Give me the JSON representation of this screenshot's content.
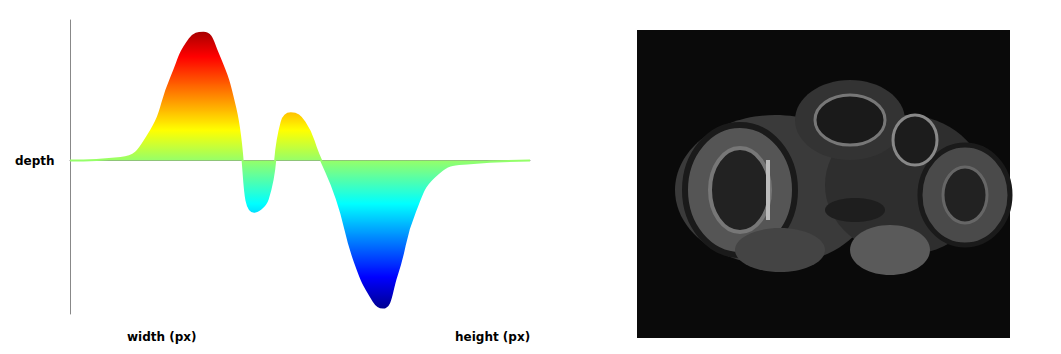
{
  "chart_data": {
    "type": "line",
    "xlabel": "width (px)",
    "ylabel": "height (px)",
    "zlabel": "depth",
    "x": [
      0,
      11,
      17,
      22,
      26,
      29,
      32,
      36,
      40,
      43,
      46,
      48,
      51,
      54,
      58,
      62,
      66,
      68,
      71,
      75,
      80,
      87,
      100
    ],
    "values": [
      0,
      0.02,
      0.2,
      0.65,
      0.95,
      1.0,
      0.85,
      0.4,
      -0.4,
      -0.3,
      0.3,
      0.37,
      0.3,
      0.05,
      -0.3,
      -0.8,
      -1.1,
      -1.15,
      -0.9,
      -0.4,
      -0.1,
      -0.02,
      0
    ],
    "xlim": [
      0,
      100
    ],
    "ylim": [
      -1.2,
      1.1
    ],
    "xticks": [],
    "yticks": [],
    "tick_labels": false,
    "grid": false
  }
}
